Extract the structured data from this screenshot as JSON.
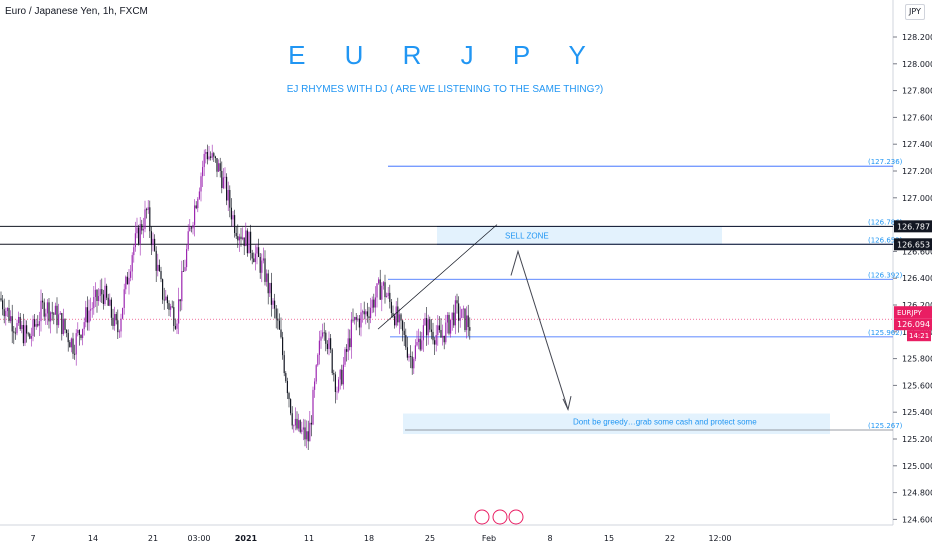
{
  "header": {
    "symbol": "Euro / Japanese Yen, 1h, FXCM",
    "currency": "JPY",
    "title": "E U R J P Y",
    "subtitle": "EJ RHYMES WITH DJ ( ARE WE LISTENING TO THE SAME THING?)"
  },
  "colors": {
    "candle": "#9c27b0",
    "candle_dark": "#131722",
    "accent_blue": "#2196f3",
    "level_blue": "#2962ff",
    "price_tag": "#e91e63",
    "zone_fill": "#e3f2fd"
  },
  "chart_data": {
    "type": "line",
    "title": "E U R J P Y",
    "subtitle": "EJ RHYMES WITH DJ ( ARE WE LISTENING TO THE SAME THING?)",
    "symbol": "EURJPY",
    "interval": "1h",
    "ylim": [
      124.5,
      128.35
    ],
    "y_ticks": [
      "128.200",
      "128.000",
      "127.800",
      "127.600",
      "127.400",
      "127.200",
      "127.000",
      "126.800",
      "126.600",
      "126.400",
      "126.200",
      "126.000",
      "125.800",
      "125.600",
      "125.400",
      "125.200",
      "125.000",
      "124.800",
      "124.600"
    ],
    "x_ticks": [
      "7",
      "14",
      "21",
      "03:00",
      "2021",
      "11",
      "18",
      "25",
      "Feb",
      "8",
      "15",
      "22",
      "12:00"
    ],
    "price_path": [
      [
        "7",
        126.25
      ],
      [
        "9",
        126.05
      ],
      [
        "11",
        125.95
      ],
      [
        "14",
        126.2
      ],
      [
        "16",
        126.1
      ],
      [
        "18",
        125.9
      ],
      [
        "21",
        126.15
      ],
      [
        "23",
        126.3
      ],
      [
        "26",
        126.0
      ],
      [
        "29",
        126.6
      ],
      [
        "31",
        126.9
      ],
      [
        "2021",
        126.3
      ],
      [
        "5",
        126.1
      ],
      [
        "7",
        126.8
      ],
      [
        "9",
        127.35
      ],
      [
        "10",
        127.2
      ],
      [
        "11",
        126.8
      ],
      [
        "13",
        126.65
      ],
      [
        "15",
        126.45
      ],
      [
        "17",
        126.0
      ],
      [
        "18",
        125.3
      ],
      [
        "19",
        125.2
      ],
      [
        "20",
        126.1
      ],
      [
        "21",
        125.55
      ],
      [
        "22",
        126.05
      ],
      [
        "24",
        126.15
      ],
      [
        "25",
        126.35
      ],
      [
        "26",
        126.1
      ],
      [
        "27",
        125.8
      ],
      [
        "28",
        126.05
      ],
      [
        "29",
        125.95
      ],
      [
        "30",
        126.15
      ],
      [
        "31",
        126.05
      ]
    ],
    "horizontal_levels": [
      {
        "label": "127.236",
        "value": 127.236
      },
      {
        "label": "126.786",
        "value": 126.786
      },
      {
        "label": "126.653",
        "value": 126.653
      },
      {
        "label": "126.392",
        "value": 126.392
      },
      {
        "label": "125.962",
        "value": 125.962
      },
      {
        "label": "125.267",
        "value": 125.267
      }
    ],
    "black_levels": [
      {
        "label": "126.787",
        "value": 126.787
      },
      {
        "label": "126.653",
        "value": 126.653
      }
    ],
    "last_price": {
      "symbol": "EURJPY",
      "value": "126.094",
      "countdown": "14:21"
    },
    "annotations": [
      {
        "text": "SELL ZONE"
      },
      {
        "text": "Dont be greedy…grab some cash and protect some"
      }
    ]
  }
}
